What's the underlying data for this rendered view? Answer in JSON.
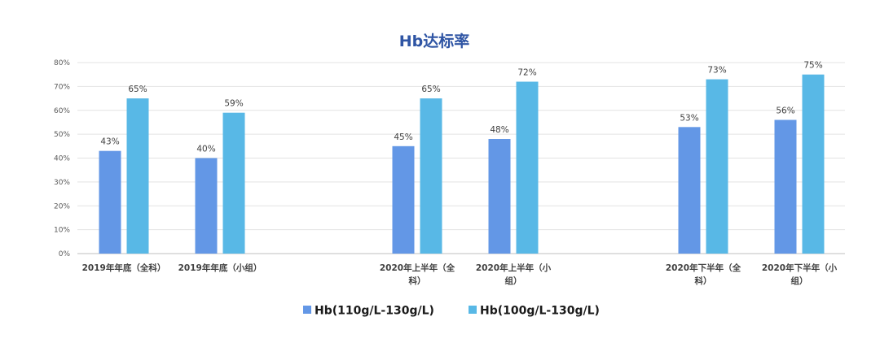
{
  "chart_data": {
    "type": "bar",
    "title": "Hb达标率",
    "categories": [
      [
        "2019年年底（全科）"
      ],
      [
        "2019年年底（小组）"
      ],
      [
        "2020年上半年（全",
        "科）"
      ],
      [
        "2020年上半年（小",
        "组）"
      ],
      [
        "2020年下半年（全",
        "科）"
      ],
      [
        "2020年下半年（小",
        "组）"
      ]
    ],
    "series": [
      {
        "name": "Hb(110g/L-130g/L)",
        "values": [
          43,
          40,
          45,
          48,
          53,
          56
        ],
        "labels": [
          "43%",
          "40%",
          "45%",
          "48%",
          "53%",
          "56%"
        ]
      },
      {
        "name": "Hb(100g/L-130g/L)",
        "values": [
          65,
          59,
          65,
          72,
          73,
          75
        ],
        "labels": [
          "65%",
          "59%",
          "65%",
          "72%",
          "73%",
          "75%"
        ]
      }
    ],
    "ylim": [
      0,
      80
    ],
    "yticks": [
      "0%",
      "10%",
      "20%",
      "30%",
      "40%",
      "50%",
      "60%",
      "70%",
      "80%"
    ],
    "grid": true,
    "legend_position": "bottom",
    "colors": {
      "title": "#2f55a4",
      "series": [
        "#6397e6",
        "#58b8e6"
      ],
      "grid": "#e3e3e3",
      "axis": "#bfbfbf"
    }
  }
}
